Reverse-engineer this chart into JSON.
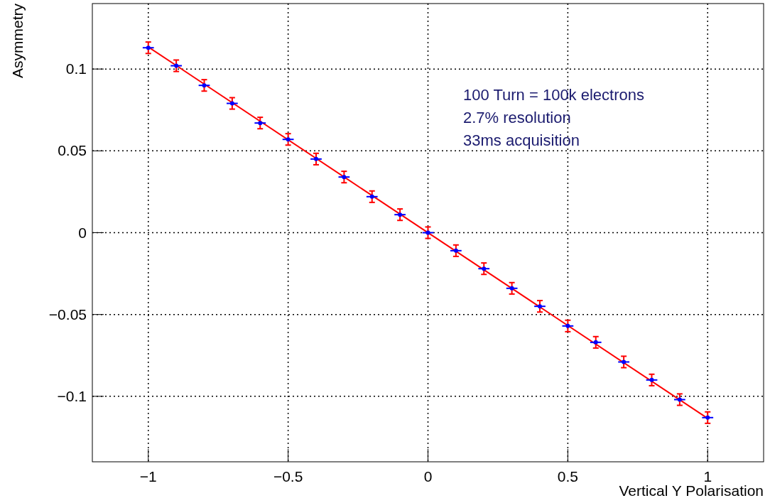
{
  "chart_data": {
    "type": "scatter",
    "xlabel": "Vertical Y Polarisation",
    "ylabel": "Asymmetry",
    "xlim": [
      -1.2,
      1.2
    ],
    "ylim": [
      -0.14,
      0.14
    ],
    "xticks": [
      {
        "value": -1,
        "label": "−1"
      },
      {
        "value": -0.5,
        "label": "−0.5"
      },
      0,
      0.5,
      1
    ],
    "yticks": [
      {
        "value": -0.1,
        "label": "−0.1"
      },
      {
        "value": -0.05,
        "label": "−0.05"
      },
      0,
      0.05,
      0.1
    ],
    "grid": true,
    "annotations": [
      "100 Turn = 100k electrons",
      "2.7% resolution",
      "33ms acquisition"
    ],
    "series": [
      {
        "type": "line",
        "color": "#ff0000",
        "x": [
          -1,
          1
        ],
        "values": [
          0.1135,
          -0.1135
        ]
      },
      {
        "color": "#0000ff",
        "marker": "circle",
        "x": [
          -1,
          -0.9,
          -0.8,
          -0.7,
          -0.6,
          -0.5,
          -0.4,
          -0.3,
          -0.2,
          -0.1,
          0,
          0.1,
          0.2,
          0.3,
          0.4,
          0.5,
          0.6,
          0.7,
          0.8,
          0.9,
          1
        ],
        "values": [
          0.113,
          0.102,
          0.09,
          0.079,
          0.067,
          0.057,
          0.045,
          0.034,
          0.022,
          0.011,
          0,
          -0.011,
          -0.022,
          -0.034,
          -0.045,
          -0.057,
          -0.067,
          -0.079,
          -0.09,
          -0.102,
          -0.113
        ],
        "errors": [
          0.0035,
          0.0035,
          0.0035,
          0.0035,
          0.0035,
          0.0035,
          0.0035,
          0.0035,
          0.0035,
          0.0035,
          0.0035,
          0.0035,
          0.0035,
          0.0035,
          0.0035,
          0.0035,
          0.0035,
          0.0035,
          0.0035,
          0.0035,
          0.0035
        ],
        "xerrors": [
          0.02,
          0.02,
          0.02,
          0.02,
          0.02,
          0.02,
          0.02,
          0.02,
          0.02,
          0.02,
          0.02,
          0.02,
          0.02,
          0.02,
          0.02,
          0.02,
          0.02,
          0.02,
          0.02,
          0.02,
          0.02
        ]
      }
    ]
  }
}
